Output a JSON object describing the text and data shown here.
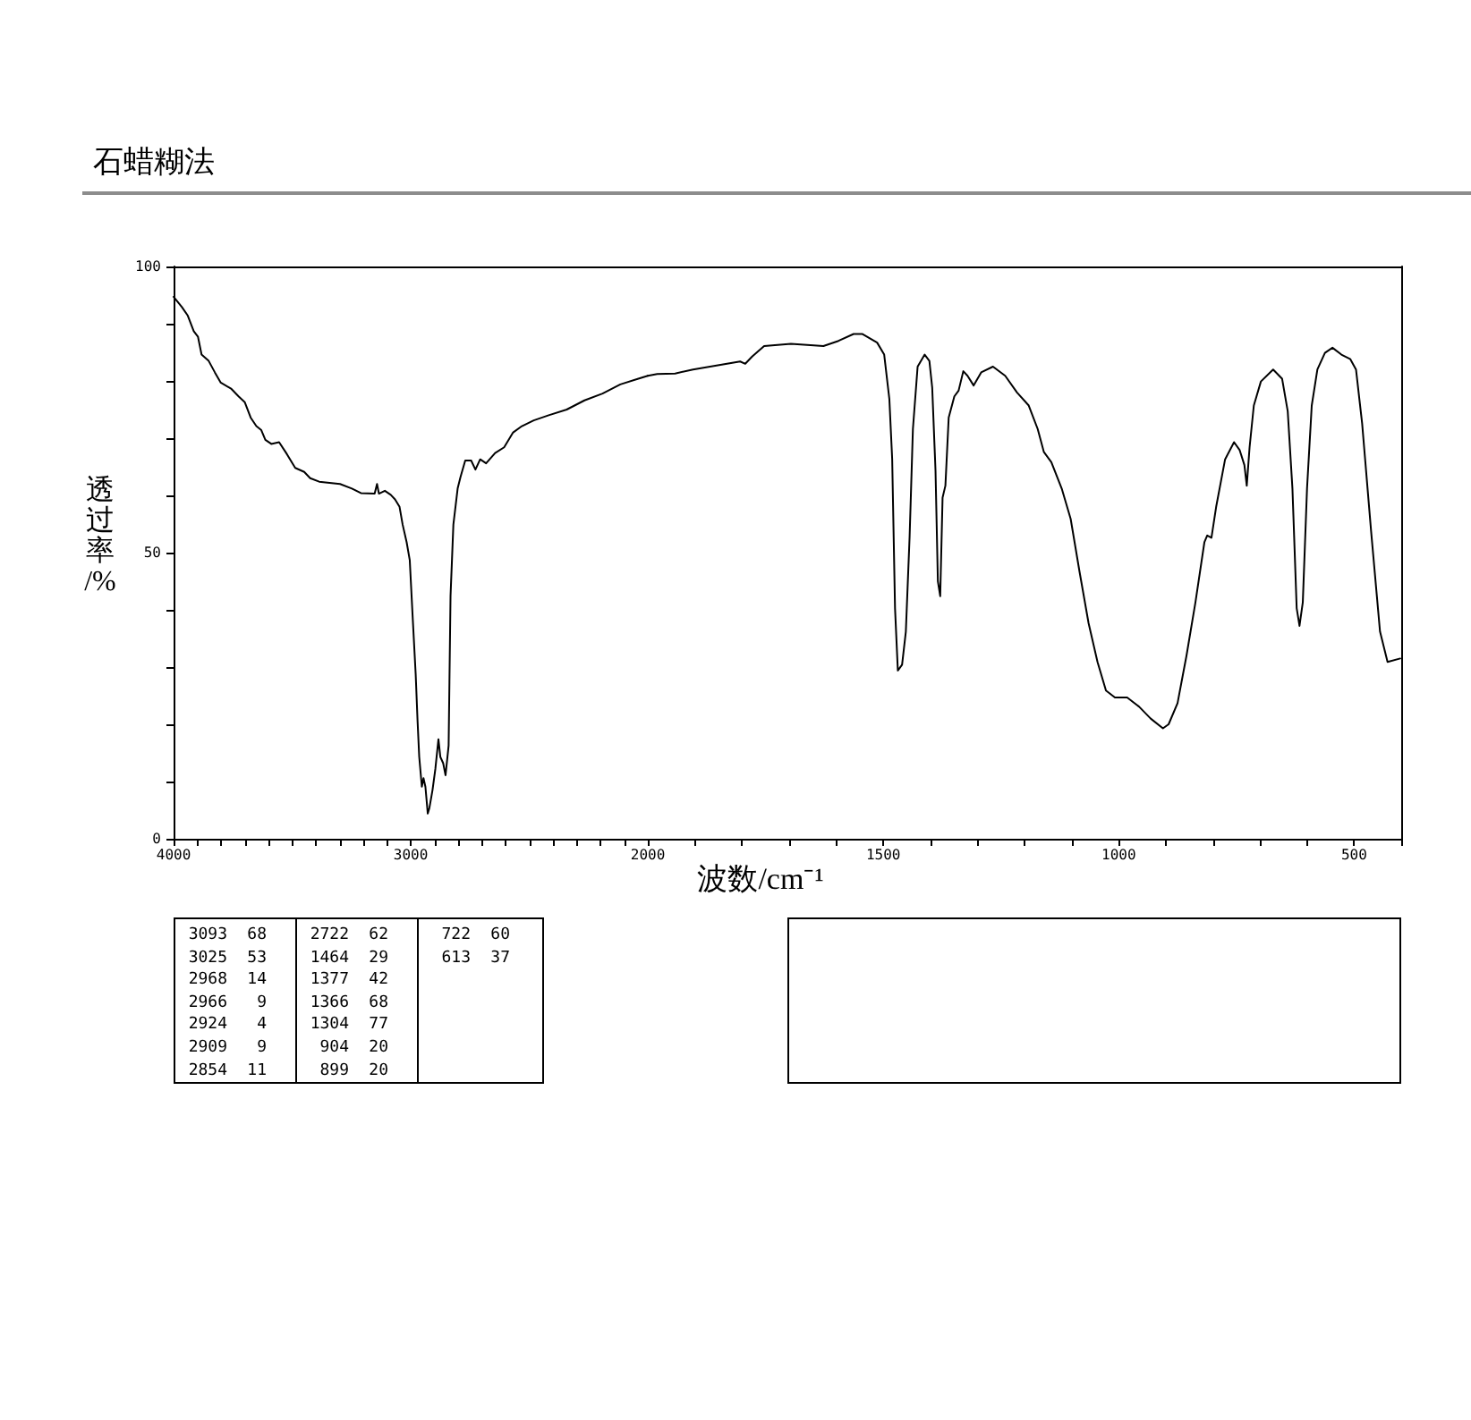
{
  "chart_data": [
    {
      "type": "line",
      "title": "石蜡糊法",
      "ylabel": "透过率/%",
      "xlim": [
        4000,
        2000
      ],
      "xticks": [
        4000,
        {
          "value": 3900,
          "label": null
        },
        {
          "value": 3800,
          "label": null
        },
        {
          "value": 3700,
          "label": null
        },
        {
          "value": 3600,
          "label": null
        },
        {
          "value": 3500,
          "label": null
        },
        {
          "value": 3400,
          "label": null
        },
        {
          "value": 3300,
          "label": null
        },
        {
          "value": 3200,
          "label": null
        },
        {
          "value": 3100,
          "label": null
        },
        3000,
        {
          "value": 2900,
          "label": null
        },
        {
          "value": 2800,
          "label": null
        },
        {
          "value": 2700,
          "label": null
        },
        {
          "value": 2600,
          "label": null
        },
        {
          "value": 2500,
          "label": null
        },
        {
          "value": 2400,
          "label": null
        },
        {
          "value": 2300,
          "label": null
        },
        {
          "value": 2200,
          "label": null
        },
        {
          "value": 2100,
          "label": null
        }
      ],
      "ylim": [
        0,
        100
      ],
      "yticks": [
        0,
        {
          "value": 10,
          "label": null
        },
        {
          "value": 20,
          "label": null
        },
        {
          "value": 30,
          "label": null
        },
        {
          "value": 40,
          "label": null
        },
        50,
        {
          "value": 60,
          "label": null
        },
        {
          "value": 70,
          "label": null
        },
        {
          "value": 80,
          "label": null
        },
        {
          "value": 90,
          "label": null
        },
        100
      ],
      "marker": "none",
      "line_style": "solid",
      "color": "#000000",
      "x": [
        4000,
        3965,
        3940,
        3915,
        3897,
        3882,
        3852,
        3826,
        3801,
        3756,
        3726,
        3700,
        3675,
        3651,
        3630,
        3613,
        3588,
        3555,
        3525,
        3487,
        3449,
        3424,
        3386,
        3298,
        3248,
        3210,
        3152,
        3142,
        3134,
        3109,
        3084,
        3066,
        3047,
        3034,
        3017,
        3004,
        2991,
        2979,
        2971,
        2964,
        2953,
        2946,
        2938,
        2928,
        2921,
        2908,
        2896,
        2883,
        2875,
        2863,
        2853,
        2840,
        2832,
        2820,
        2802,
        2790,
        2770,
        2745,
        2727,
        2707,
        2682,
        2644,
        2606,
        2568,
        2531,
        2481,
        2418,
        2342,
        2267,
        2191,
        2116,
        2040,
        2000
      ],
      "values": [
        94.7,
        92.9,
        91.4,
        88.7,
        87.7,
        84.6,
        83.5,
        81.5,
        79.7,
        78.6,
        77.3,
        76.3,
        73.6,
        72.1,
        71.4,
        69.7,
        69.0,
        69.3,
        67.4,
        64.8,
        64.1,
        63.0,
        62.4,
        62.0,
        61.2,
        60.4,
        60.3,
        62.0,
        60.3,
        60.8,
        60.1,
        59.3,
        58.0,
        54.9,
        51.8,
        48.7,
        38.2,
        28.8,
        20.5,
        14.3,
        9.1,
        10.6,
        9.1,
        4.4,
        5.4,
        8.5,
        12.2,
        17.4,
        14.3,
        13.2,
        11.1,
        16.3,
        42.4,
        54.9,
        61.2,
        63.2,
        66.1,
        66.1,
        64.5,
        66.3,
        65.6,
        67.4,
        68.4,
        71.0,
        72.1,
        73.1,
        74.0,
        75.0,
        76.6,
        77.8,
        79.4,
        80.4,
        80.9
      ],
      "annotations": [
        "3093 68",
        "3025 53",
        "2968 14",
        "2966 9",
        "2924 4",
        "2909 9",
        "2854 11",
        "2722 62",
        "1464 29",
        "1377 42",
        "1366 68",
        "1304 77",
        "904 20",
        "899 20",
        "722 60",
        "613 37"
      ]
    },
    {
      "type": "line",
      "xlabel": "波数/cm⁻¹",
      "xlim": [
        2000,
        400
      ],
      "xticks": [
        2000,
        {
          "value": 1900,
          "label": null
        },
        {
          "value": 1800,
          "label": null
        },
        {
          "value": 1700,
          "label": null
        },
        {
          "value": 1600,
          "label": null
        },
        1500,
        {
          "value": 1400,
          "label": null
        },
        {
          "value": 1300,
          "label": null
        },
        {
          "value": 1200,
          "label": null
        },
        {
          "value": 1100,
          "label": null
        },
        1000,
        {
          "value": 900,
          "label": null
        },
        {
          "value": 800,
          "label": null
        },
        {
          "value": 700,
          "label": null
        },
        {
          "value": 600,
          "label": null
        },
        500,
        {
          "value": 400,
          "label": null
        }
      ],
      "ylim": [
        0,
        100
      ],
      "tick_labels": "x",
      "marker": "none",
      "line_style": "solid",
      "color": "#000000",
      "x": [
        2000,
        1980,
        1942,
        1904,
        1854,
        1804,
        1793,
        1778,
        1753,
        1696,
        1627,
        1595,
        1563,
        1544,
        1513,
        1498,
        1487,
        1481,
        1475,
        1469,
        1460,
        1452,
        1444,
        1437,
        1427,
        1412,
        1402,
        1396,
        1389,
        1384,
        1379,
        1374,
        1368,
        1361,
        1349,
        1340,
        1330,
        1321,
        1308,
        1292,
        1267,
        1241,
        1216,
        1191,
        1172,
        1159,
        1143,
        1121,
        1102,
        1083,
        1064,
        1045,
        1027,
        1008,
        982,
        957,
        932,
        906,
        894,
        875,
        856,
        837,
        818,
        812,
        803,
        793,
        774,
        755,
        743,
        733,
        728,
        722,
        713,
        698,
        672,
        653,
        641,
        631,
        622,
        616,
        609,
        600,
        590,
        578,
        562,
        546,
        527,
        508,
        496,
        483,
        464,
        445,
        429,
        402
      ],
      "values": [
        80.9,
        81.2,
        81.3,
        82.0,
        82.7,
        83.4,
        83.0,
        84.3,
        86.1,
        86.5,
        86.1,
        87.0,
        88.2,
        88.2,
        86.7,
        84.6,
        76.8,
        66.3,
        40.3,
        29.4,
        30.4,
        36.2,
        52.8,
        71.6,
        82.5,
        84.6,
        83.5,
        78.8,
        64.3,
        45.0,
        42.4,
        59.6,
        61.7,
        73.6,
        77.3,
        78.3,
        81.7,
        80.9,
        79.2,
        81.5,
        82.5,
        80.9,
        78.0,
        75.7,
        71.6,
        67.6,
        65.8,
        61.2,
        55.9,
        46.6,
        37.7,
        30.9,
        25.9,
        24.7,
        24.7,
        23.1,
        21.0,
        19.3,
        20.0,
        23.7,
        32.0,
        41.3,
        51.8,
        53.0,
        52.6,
        58.0,
        66.3,
        69.3,
        67.9,
        65.3,
        61.7,
        68.4,
        75.7,
        79.9,
        82.0,
        80.4,
        74.7,
        61.2,
        40.3,
        37.2,
        41.3,
        61.2,
        75.7,
        82.0,
        84.9,
        85.8,
        84.6,
        83.8,
        82.0,
        72.6,
        53.8,
        36.2,
        30.9,
        31.5
      ]
    }
  ]
}
